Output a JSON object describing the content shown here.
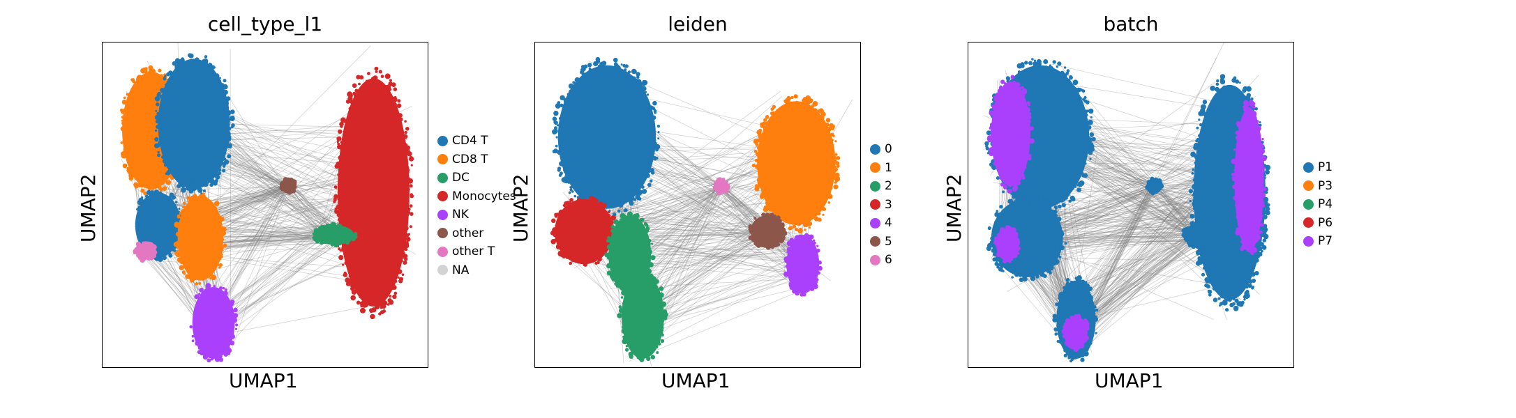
{
  "chart_data": [
    {
      "type": "scatter",
      "title": "cell_type_l1",
      "xlabel": "UMAP1",
      "ylabel": "UMAP2",
      "legend_placement": "right",
      "series": [
        {
          "name": "CD4 T",
          "color": "#1f77b4"
        },
        {
          "name": "CD8 T",
          "color": "#ff7f0e"
        },
        {
          "name": "DC",
          "color": "#279e68"
        },
        {
          "name": "Monocytes",
          "color": "#d62728"
        },
        {
          "name": "NK",
          "color": "#aa40fc"
        },
        {
          "name": "other",
          "color": "#8c564b"
        },
        {
          "name": "other T",
          "color": "#e377c2"
        },
        {
          "name": "NA",
          "color": "#d3d3d3"
        }
      ],
      "layers": [
        {
          "color": "#ff7f0e",
          "cx": 0.15,
          "cy": 0.27,
          "rx": 0.09,
          "ry": 0.18
        },
        {
          "color": "#1f77b4",
          "cx": 0.28,
          "cy": 0.25,
          "rx": 0.11,
          "ry": 0.2
        },
        {
          "color": "#1f77b4",
          "cx": 0.17,
          "cy": 0.56,
          "rx": 0.07,
          "ry": 0.1
        },
        {
          "color": "#ff7f0e",
          "cx": 0.3,
          "cy": 0.6,
          "rx": 0.07,
          "ry": 0.13
        },
        {
          "color": "#e377c2",
          "cx": 0.13,
          "cy": 0.64,
          "rx": 0.03,
          "ry": 0.025
        },
        {
          "color": "#aa40fc",
          "cx": 0.34,
          "cy": 0.86,
          "rx": 0.065,
          "ry": 0.11
        },
        {
          "color": "#d62728",
          "cx": 0.83,
          "cy": 0.46,
          "rx": 0.11,
          "ry": 0.35
        },
        {
          "color": "#279e68",
          "cx": 0.71,
          "cy": 0.59,
          "rx": 0.06,
          "ry": 0.03
        },
        {
          "color": "#8c564b",
          "cx": 0.57,
          "cy": 0.44,
          "rx": 0.02,
          "ry": 0.02
        }
      ]
    },
    {
      "type": "scatter",
      "title": "leiden",
      "xlabel": "UMAP1",
      "ylabel": "UMAP2",
      "legend_placement": "right",
      "series": [
        {
          "name": "0",
          "color": "#1f77b4"
        },
        {
          "name": "1",
          "color": "#ff7f0e"
        },
        {
          "name": "2",
          "color": "#279e68"
        },
        {
          "name": "3",
          "color": "#d62728"
        },
        {
          "name": "4",
          "color": "#aa40fc"
        },
        {
          "name": "5",
          "color": "#8c564b"
        },
        {
          "name": "6",
          "color": "#e377c2"
        }
      ],
      "layers": [
        {
          "color": "#1f77b4",
          "cx": 0.22,
          "cy": 0.29,
          "rx": 0.15,
          "ry": 0.22
        },
        {
          "color": "#d62728",
          "cx": 0.15,
          "cy": 0.58,
          "rx": 0.09,
          "ry": 0.1
        },
        {
          "color": "#279e68",
          "cx": 0.29,
          "cy": 0.65,
          "rx": 0.065,
          "ry": 0.12
        },
        {
          "color": "#279e68",
          "cx": 0.33,
          "cy": 0.84,
          "rx": 0.065,
          "ry": 0.13
        },
        {
          "color": "#ff7f0e",
          "cx": 0.8,
          "cy": 0.37,
          "rx": 0.12,
          "ry": 0.19
        },
        {
          "color": "#aa40fc",
          "cx": 0.82,
          "cy": 0.68,
          "rx": 0.05,
          "ry": 0.09
        },
        {
          "color": "#8c564b",
          "cx": 0.71,
          "cy": 0.58,
          "rx": 0.05,
          "ry": 0.05
        },
        {
          "color": "#e377c2",
          "cx": 0.57,
          "cy": 0.44,
          "rx": 0.02,
          "ry": 0.02
        }
      ]
    },
    {
      "type": "scatter",
      "title": "batch",
      "xlabel": "UMAP1",
      "ylabel": "UMAP2",
      "legend_placement": "right",
      "series": [
        {
          "name": "P1",
          "color": "#1f77b4"
        },
        {
          "name": "P3",
          "color": "#ff7f0e"
        },
        {
          "name": "P4",
          "color": "#279e68"
        },
        {
          "name": "P6",
          "color": "#d62728"
        },
        {
          "name": "P7",
          "color": "#aa40fc"
        }
      ],
      "layers": [
        {
          "color": "#1f77b4",
          "cx": 0.22,
          "cy": 0.29,
          "rx": 0.15,
          "ry": 0.22
        },
        {
          "color": "#aa40fc",
          "cx": 0.13,
          "cy": 0.28,
          "rx": 0.06,
          "ry": 0.16
        },
        {
          "color": "#1f77b4",
          "cx": 0.18,
          "cy": 0.6,
          "rx": 0.11,
          "ry": 0.12
        },
        {
          "color": "#aa40fc",
          "cx": 0.12,
          "cy": 0.62,
          "rx": 0.035,
          "ry": 0.05
        },
        {
          "color": "#1f77b4",
          "cx": 0.33,
          "cy": 0.85,
          "rx": 0.06,
          "ry": 0.12
        },
        {
          "color": "#aa40fc",
          "cx": 0.33,
          "cy": 0.89,
          "rx": 0.035,
          "ry": 0.05
        },
        {
          "color": "#1f77b4",
          "cx": 0.8,
          "cy": 0.46,
          "rx": 0.11,
          "ry": 0.33
        },
        {
          "color": "#aa40fc",
          "cx": 0.86,
          "cy": 0.42,
          "rx": 0.045,
          "ry": 0.22
        },
        {
          "color": "#1f77b4",
          "cx": 0.71,
          "cy": 0.59,
          "rx": 0.05,
          "ry": 0.035
        },
        {
          "color": "#1f77b4",
          "cx": 0.57,
          "cy": 0.44,
          "rx": 0.02,
          "ry": 0.02
        }
      ]
    }
  ]
}
